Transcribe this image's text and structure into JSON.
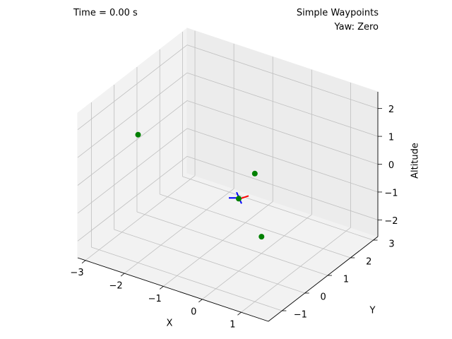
{
  "overlay": {
    "time_text": "Time = 0.00 s",
    "title_line1": "Simple Waypoints",
    "title_line2": "Yaw: Zero"
  },
  "chart_data": {
    "type": "scatter",
    "projection": "3d",
    "grid": true,
    "xlabel": "X",
    "ylabel": "Y",
    "zlabel": "Altitude",
    "xlim": [
      -3.2,
      1.7
    ],
    "ylim": [
      -1.6,
      3.2
    ],
    "zlim": [
      -2.6,
      2.6
    ],
    "x_ticks": [
      -3,
      -2,
      -1,
      0,
      1
    ],
    "y_ticks": [
      -1,
      0,
      1,
      2,
      3
    ],
    "z_ticks": [
      -2,
      -1,
      0,
      1,
      2
    ],
    "x_tick_labels": [
      "−3",
      "−2",
      "−1",
      "0",
      "1"
    ],
    "y_tick_labels": [
      "−1",
      "0",
      "1",
      "2",
      "3"
    ],
    "z_tick_labels": [
      "−2",
      "−1",
      "0",
      "1",
      "2"
    ],
    "pane_color": "#f2f2f2",
    "grid_color": "#bfbfbf",
    "waypoints": {
      "color": "#008000",
      "points": [
        {
          "x": -2,
          "y": -1,
          "z": 2
        },
        {
          "x": 1,
          "y": -1,
          "z": 2
        },
        {
          "x": 0,
          "y": 0,
          "z": 0
        },
        {
          "x": 0,
          "y": 1,
          "z": -2
        }
      ]
    },
    "vehicle": {
      "position": {
        "x": 0,
        "y": 0,
        "z": 0
      },
      "arm_colors": [
        "#0000ff",
        "#ff0000"
      ]
    }
  }
}
